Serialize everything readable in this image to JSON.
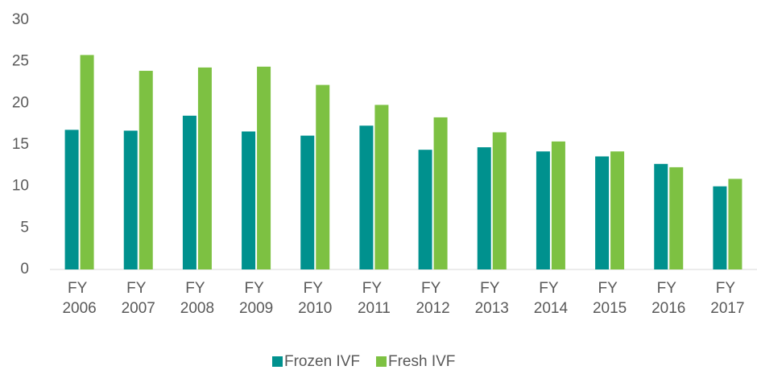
{
  "chart_data": {
    "type": "bar",
    "categories": [
      "FY 2006",
      "FY 2007",
      "FY 2008",
      "FY 2009",
      "FY 2010",
      "FY 2011",
      "FY 2012",
      "FY 2013",
      "FY 2014",
      "FY 2015",
      "FY 2016",
      "FY 2017"
    ],
    "series": [
      {
        "name": "Frozen IVF",
        "color": "#00918e",
        "values": [
          16.8,
          16.7,
          18.5,
          16.6,
          16.1,
          17.3,
          14.4,
          14.7,
          14.2,
          13.6,
          12.7,
          10.0
        ]
      },
      {
        "name": "Fresh IVF",
        "color": "#7dc142",
        "values": [
          25.8,
          23.9,
          24.3,
          24.4,
          22.2,
          19.8,
          18.3,
          16.5,
          15.4,
          14.2,
          12.3,
          10.9
        ]
      }
    ],
    "ylim": [
      0,
      30
    ],
    "yticks": [
      0,
      5,
      10,
      15,
      20,
      25,
      30
    ],
    "grid": false,
    "legend": "bottom"
  }
}
